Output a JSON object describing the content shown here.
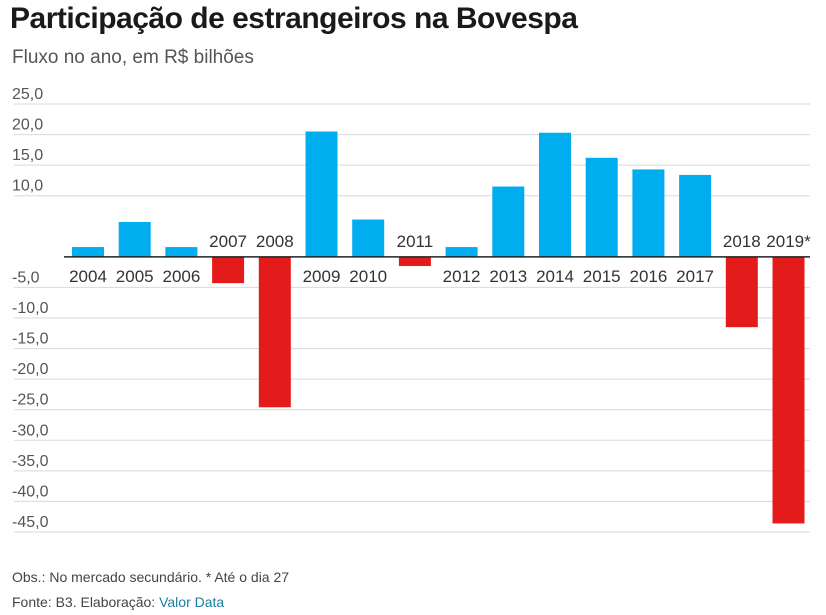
{
  "header": {
    "title": "Participação de estrangeiros na Bovespa",
    "subtitle": "Fluxo no ano, em R$ bilhões"
  },
  "footer": {
    "note": "Obs.: No mercado secundário. * Até o dia 27",
    "source_prefix": "Fonte: B3. Elaboração: ",
    "source_link": "Valor Data"
  },
  "colors": {
    "positive": "#00aeef",
    "negative": "#e31b1b",
    "grid": "#d9d9d9",
    "axis": "#222222"
  },
  "chart_data": {
    "type": "bar",
    "title": "Participação de estrangeiros na Bovespa",
    "subtitle": "Fluxo no ano, em R$ bilhões",
    "xlabel": "",
    "ylabel": "",
    "ylim": [
      -45,
      25
    ],
    "yticks": [
      25,
      20,
      15,
      10,
      -5,
      -10,
      -15,
      -20,
      -25,
      -30,
      -35,
      -40,
      -45
    ],
    "ytick_labels": [
      "25,0",
      "20,0",
      "15,0",
      "10,0",
      "-5,0",
      "-10,0",
      "-15,0",
      "-20,0",
      "-25,0",
      "-30,0",
      "-35,0",
      "-40,0",
      "-45,0"
    ],
    "grid": true,
    "categories": [
      "2004",
      "2005",
      "2006",
      "2007",
      "2008",
      "2009",
      "2010",
      "2011",
      "2012",
      "2013",
      "2014",
      "2015",
      "2016",
      "2017",
      "2018",
      "2019*"
    ],
    "values": [
      1.6,
      5.7,
      1.6,
      -4.3,
      -24.6,
      20.5,
      6.1,
      -1.5,
      1.6,
      11.5,
      20.3,
      16.2,
      14.3,
      13.4,
      -11.5,
      -43.6
    ]
  }
}
